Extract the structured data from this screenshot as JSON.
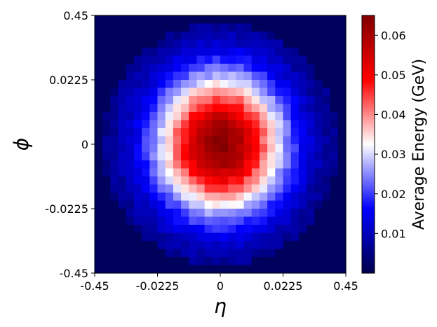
{
  "chart_data": {
    "type": "heatmap",
    "title": "",
    "xlabel": "η",
    "ylabel": "ϕ",
    "x_tick_labels": [
      "-0.45",
      "-0.0225",
      "0",
      "0.0225",
      "0.45"
    ],
    "y_tick_labels": [
      "0.45",
      "0.0225",
      "0",
      "-0.0225",
      "-0.45"
    ],
    "grid": {
      "nx": 32,
      "ny": 32,
      "peak_value": 0.064,
      "floor_value": 0.003,
      "description_of_shape": "roughly circular energy deposit centered at (0,0), decaying radially"
    },
    "colorbar": {
      "label": "Average Energy (GeV)",
      "min": 0.0,
      "max": 0.065,
      "ticks": [
        0.01,
        0.02,
        0.03,
        0.04,
        0.05,
        0.06
      ],
      "tick_labels": [
        "0.01",
        "0.02",
        "0.03",
        "0.04",
        "0.05",
        "0.06"
      ],
      "colormap": "seismic",
      "colormap_stops": [
        "#00004c",
        "#0000ff",
        "#ffffff",
        "#ff0000",
        "#800000"
      ]
    }
  }
}
